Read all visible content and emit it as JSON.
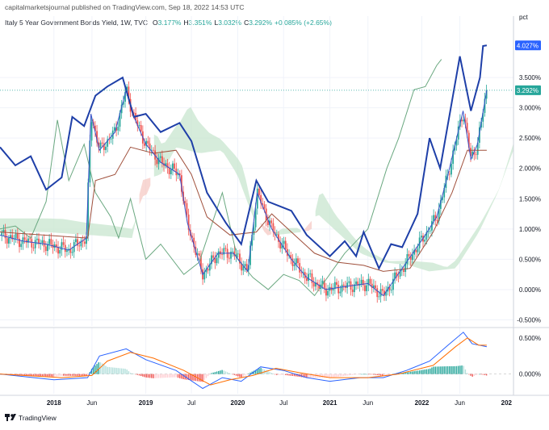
{
  "header": {
    "publisher_line": "capitalmarketsjournal published on TradingView.com, Sep 18, 2022 14:53 UTC",
    "symbol_title": "Italy 5 Year Government Bonds Yield, 1W, TVC",
    "ohlc": [
      {
        "label": "O",
        "value": "3.177%"
      },
      {
        "label": "H",
        "value": "3.351%"
      },
      {
        "label": "L",
        "value": "3.032%"
      },
      {
        "label": "C",
        "value": "3.292%"
      }
    ],
    "change": "+0.085% (+2.65%)"
  },
  "price_axis": {
    "unit_label": "pct",
    "current_high_tag": "4.027%",
    "last_price_tag": "3.292%",
    "tick_labels": [
      "3.500%",
      "3.000%",
      "2.500%",
      "2.000%",
      "1.500%",
      "1.000%",
      "0.500%",
      "0.000%",
      "-0.500%"
    ]
  },
  "macd_axis": {
    "tick_labels": [
      "0.500%",
      "0.000%"
    ]
  },
  "time_axis": {
    "tick_labels": [
      "2018",
      "Jun",
      "2019",
      "Jul",
      "2020",
      "Jul",
      "2021",
      "Jun",
      "2022",
      "Jun",
      "202"
    ]
  },
  "footer": {
    "brand": "TradingView"
  },
  "colors": {
    "price_blue": "#1e3fa8",
    "ema_blue": "#3a52c8",
    "base_line": "#a0503c",
    "lagging_span": "#6aa880",
    "cloud_bull": "#c8e6cf",
    "cloud_bear": "#f5c9c4",
    "candle_up": "#26a69a",
    "candle_down": "#ef5350",
    "last_price": "#26a69a",
    "current_tag": "#2962ff",
    "macd_line": "#2962ff",
    "signal_line": "#ff6d00"
  },
  "chart_data": [
    {
      "type": "line",
      "title": "Italy 5 Year Government Bonds Yield, 1W, TVC",
      "x_type": "date",
      "xlim": [
        "2017-06-01",
        "2022-12-31"
      ],
      "ylim": [
        -0.6,
        4.3
      ],
      "y_unit": "%",
      "series": [
        {
          "role": "close",
          "points": [
            [
              "2017-06-01",
              0.9
            ],
            [
              "2017-09-01",
              0.8
            ],
            [
              "2017-12-01",
              0.75
            ],
            [
              "2018-03-01",
              0.65
            ],
            [
              "2018-05-10",
              0.85
            ],
            [
              "2018-05-28",
              2.9
            ],
            [
              "2018-07-01",
              2.3
            ],
            [
              "2018-09-01",
              2.6
            ],
            [
              "2018-10-15",
              3.3
            ],
            [
              "2018-11-15",
              2.85
            ],
            [
              "2019-01-01",
              2.4
            ],
            [
              "2019-03-01",
              2.1
            ],
            [
              "2019-05-15",
              1.9
            ],
            [
              "2019-06-15",
              1.1
            ],
            [
              "2019-08-15",
              0.25
            ],
            [
              "2019-10-15",
              0.6
            ],
            [
              "2019-12-15",
              0.6
            ],
            [
              "2020-02-10",
              0.3
            ],
            [
              "2020-03-18",
              1.6
            ],
            [
              "2020-05-15",
              1.0
            ],
            [
              "2020-08-01",
              0.5
            ],
            [
              "2020-10-01",
              0.2
            ],
            [
              "2020-12-15",
              0.0
            ],
            [
              "2021-03-01",
              0.05
            ],
            [
              "2021-06-01",
              0.1
            ],
            [
              "2021-08-01",
              -0.1
            ],
            [
              "2021-11-01",
              0.45
            ],
            [
              "2022-01-15",
              0.9
            ],
            [
              "2022-03-01",
              1.2
            ],
            [
              "2022-04-15",
              1.9
            ],
            [
              "2022-06-14",
              2.95
            ],
            [
              "2022-07-15",
              2.15
            ],
            [
              "2022-08-10",
              2.4
            ],
            [
              "2022-09-16",
              3.29
            ]
          ]
        },
        {
          "role": "overlay_line",
          "points": [
            [
              "2017-06-01",
              2.35
            ],
            [
              "2017-08-01",
              2.05
            ],
            [
              "2017-10-01",
              2.2
            ],
            [
              "2017-12-01",
              1.65
            ],
            [
              "2018-02-01",
              1.85
            ],
            [
              "2018-03-15",
              2.85
            ],
            [
              "2018-05-01",
              2.7
            ],
            [
              "2018-06-15",
              3.2
            ],
            [
              "2018-08-01",
              3.35
            ],
            [
              "2018-10-01",
              3.5
            ],
            [
              "2018-11-15",
              2.85
            ],
            [
              "2019-01-01",
              2.9
            ],
            [
              "2019-03-01",
              2.6
            ],
            [
              "2019-05-15",
              2.75
            ],
            [
              "2019-07-01",
              2.45
            ],
            [
              "2019-09-01",
              1.6
            ],
            [
              "2019-11-15",
              1.1
            ],
            [
              "2020-01-15",
              0.75
            ],
            [
              "2020-03-15",
              1.8
            ],
            [
              "2020-05-01",
              1.45
            ],
            [
              "2020-08-01",
              1.3
            ],
            [
              "2020-10-01",
              0.9
            ],
            [
              "2021-01-01",
              0.55
            ],
            [
              "2021-03-01",
              0.8
            ],
            [
              "2021-04-15",
              0.55
            ],
            [
              "2021-05-15",
              0.95
            ],
            [
              "2021-07-15",
              0.35
            ],
            [
              "2021-09-01",
              0.75
            ],
            [
              "2021-10-15",
              0.7
            ],
            [
              "2021-12-15",
              1.25
            ],
            [
              "2022-02-01",
              2.5
            ],
            [
              "2022-03-15",
              2.0
            ],
            [
              "2022-06-01",
              3.85
            ],
            [
              "2022-07-15",
              2.95
            ],
            [
              "2022-08-20",
              3.5
            ],
            [
              "2022-09-01",
              4.02
            ],
            [
              "2022-09-16",
              4.03
            ]
          ]
        },
        {
          "role": "base_line",
          "points": [
            [
              "2017-06-01",
              0.95
            ],
            [
              "2018-05-15",
              0.85
            ],
            [
              "2018-06-15",
              1.8
            ],
            [
              "2018-09-01",
              1.9
            ],
            [
              "2018-11-01",
              2.35
            ],
            [
              "2019-02-01",
              2.25
            ],
            [
              "2019-05-01",
              2.3
            ],
            [
              "2019-07-01",
              1.9
            ],
            [
              "2019-09-01",
              1.2
            ],
            [
              "2019-12-01",
              0.9
            ],
            [
              "2020-03-15",
              0.95
            ],
            [
              "2020-05-15",
              1.25
            ],
            [
              "2020-08-01",
              0.95
            ],
            [
              "2020-11-01",
              0.6
            ],
            [
              "2021-02-01",
              0.45
            ],
            [
              "2021-05-15",
              0.4
            ],
            [
              "2021-08-01",
              0.3
            ],
            [
              "2021-11-15",
              0.35
            ],
            [
              "2022-02-15",
              0.95
            ],
            [
              "2022-05-01",
              1.6
            ],
            [
              "2022-07-01",
              2.3
            ],
            [
              "2022-09-16",
              2.3
            ]
          ]
        },
        {
          "role": "lagging_span",
          "points": [
            [
              "2017-06-01",
              1.0
            ],
            [
              "2017-08-01",
              1.05
            ],
            [
              "2017-10-01",
              0.85
            ],
            [
              "2017-12-01",
              1.45
            ],
            [
              "2018-01-15",
              2.8
            ],
            [
              "2018-03-01",
              1.8
            ],
            [
              "2018-05-01",
              2.4
            ],
            [
              "2018-06-15",
              1.6
            ],
            [
              "2018-08-15",
              1.2
            ],
            [
              "2018-09-15",
              0.85
            ],
            [
              "2018-11-01",
              1.5
            ],
            [
              "2019-01-01",
              0.5
            ],
            [
              "2019-03-01",
              0.75
            ],
            [
              "2019-06-01",
              0.25
            ],
            [
              "2019-08-01",
              0.45
            ],
            [
              "2019-11-01",
              1.6
            ],
            [
              "2020-01-01",
              0.5
            ],
            [
              "2020-03-01",
              0.2
            ],
            [
              "2020-05-01",
              0.0
            ],
            [
              "2020-07-01",
              0.25
            ],
            [
              "2020-09-01",
              0.15
            ],
            [
              "2020-11-01",
              -0.1
            ],
            [
              "2021-03-01",
              0.6
            ],
            [
              "2021-06-01",
              1.0
            ],
            [
              "2021-08-15",
              2.0
            ],
            [
              "2021-10-01",
              2.5
            ],
            [
              "2021-12-01",
              3.3
            ],
            [
              "2022-01-15",
              3.35
            ],
            [
              "2022-03-01",
              3.7
            ],
            [
              "2022-03-20",
              3.8
            ]
          ]
        }
      ]
    },
    {
      "type": "line",
      "title": "",
      "x_type": "date",
      "xlim": [
        "2017-06-01",
        "2022-12-31"
      ],
      "ylim": [
        -0.25,
        0.6
      ],
      "y_unit": "%",
      "series": [
        {
          "role": "macd",
          "points": [
            [
              "2017-06-01",
              0.0
            ],
            [
              "2018-01-01",
              -0.08
            ],
            [
              "2018-05-15",
              -0.05
            ],
            [
              "2018-07-01",
              0.25
            ],
            [
              "2018-10-15",
              0.35
            ],
            [
              "2019-01-01",
              0.2
            ],
            [
              "2019-05-01",
              0.05
            ],
            [
              "2019-08-15",
              -0.2
            ],
            [
              "2019-11-01",
              -0.05
            ],
            [
              "2020-01-15",
              -0.1
            ],
            [
              "2020-04-01",
              0.1
            ],
            [
              "2020-07-01",
              0.05
            ],
            [
              "2020-10-01",
              -0.05
            ],
            [
              "2021-01-01",
              -0.1
            ],
            [
              "2021-05-01",
              -0.05
            ],
            [
              "2021-08-01",
              -0.05
            ],
            [
              "2021-11-01",
              0.05
            ],
            [
              "2022-02-01",
              0.18
            ],
            [
              "2022-04-15",
              0.4
            ],
            [
              "2022-06-15",
              0.58
            ],
            [
              "2022-07-20",
              0.42
            ],
            [
              "2022-09-16",
              0.38
            ]
          ]
        },
        {
          "role": "signal",
          "points": [
            [
              "2017-06-01",
              0.0
            ],
            [
              "2018-02-01",
              -0.05
            ],
            [
              "2018-06-01",
              -0.02
            ],
            [
              "2018-08-01",
              0.18
            ],
            [
              "2018-11-01",
              0.3
            ],
            [
              "2019-02-01",
              0.22
            ],
            [
              "2019-06-01",
              0.05
            ],
            [
              "2019-09-15",
              -0.15
            ],
            [
              "2019-12-01",
              -0.08
            ],
            [
              "2020-03-01",
              -0.02
            ],
            [
              "2020-06-01",
              0.08
            ],
            [
              "2020-09-01",
              0.02
            ],
            [
              "2021-01-01",
              -0.05
            ],
            [
              "2021-06-01",
              -0.05
            ],
            [
              "2021-10-01",
              0.0
            ],
            [
              "2022-02-15",
              0.12
            ],
            [
              "2022-05-15",
              0.38
            ],
            [
              "2022-07-01",
              0.5
            ],
            [
              "2022-08-15",
              0.4
            ],
            [
              "2022-09-16",
              0.4
            ]
          ]
        }
      ]
    }
  ]
}
